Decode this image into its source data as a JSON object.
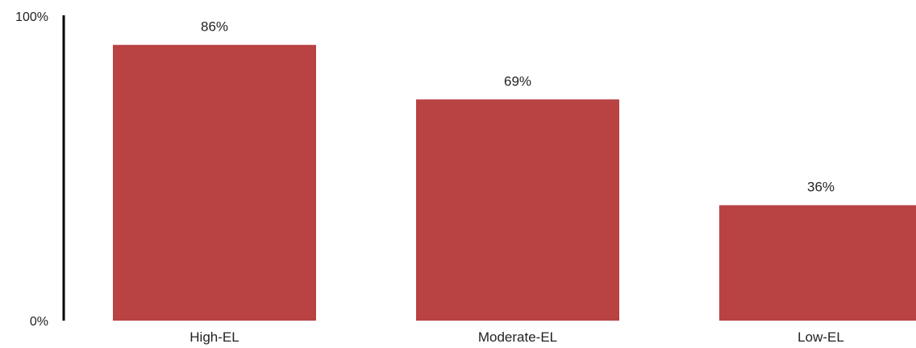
{
  "chart_data": {
    "type": "bar",
    "categories": [
      "High-EL",
      "Moderate-EL",
      "Low-EL"
    ],
    "values": [
      86,
      69,
      36
    ],
    "data_labels": [
      "86%",
      "69%",
      "36%"
    ],
    "y_tick_labels": [
      "0%",
      "100%"
    ],
    "ylim": [
      0,
      100
    ],
    "bar_color": "#b94242",
    "axis_color": "#000000",
    "grid": false,
    "legend": "none",
    "title": "",
    "xlabel": "",
    "ylabel": ""
  }
}
